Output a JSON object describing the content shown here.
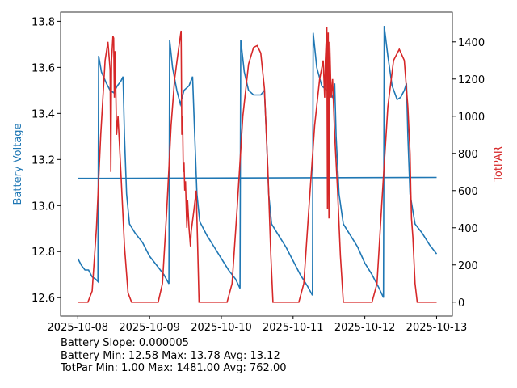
{
  "chart_data": {
    "type": "line",
    "xlabel": "",
    "ylabel": "Battery Voltage",
    "y2label": "TotPAR",
    "x_unit": "days since 2025-10-08",
    "xticks": [
      "2025-10-08",
      "2025-10-09",
      "2025-10-10",
      "2025-10-11",
      "2025-10-12",
      "2025-10-13"
    ],
    "xlim": [
      -0.24,
      5.22
    ],
    "ylim": [
      12.52,
      13.84
    ],
    "y2lim": [
      -75,
      1560
    ],
    "yticks": [
      "12.6",
      "12.8",
      "13.0",
      "13.2",
      "13.4",
      "13.6",
      "13.8"
    ],
    "y2ticks": [
      "0",
      "200",
      "400",
      "600",
      "800",
      "1000",
      "1200",
      "1400"
    ],
    "colors": {
      "battery": "#1f77b4",
      "par": "#d62728"
    },
    "series": [
      {
        "name": "Battery Voltage",
        "axis": "left",
        "points": [
          [
            0,
            12.77
          ],
          [
            0.05,
            12.74
          ],
          [
            0.1,
            12.72
          ],
          [
            0.15,
            12.72
          ],
          [
            0.2,
            12.69
          ],
          [
            0.25,
            12.68
          ],
          [
            0.28,
            12.67
          ],
          [
            0.29,
            13.65
          ],
          [
            0.33,
            13.58
          ],
          [
            0.4,
            13.53
          ],
          [
            0.45,
            13.5
          ],
          [
            0.5,
            13.49
          ],
          [
            0.55,
            13.52
          ],
          [
            0.6,
            13.54
          ],
          [
            0.63,
            13.56
          ],
          [
            0.65,
            13.3
          ],
          [
            0.68,
            13.05
          ],
          [
            0.72,
            12.92
          ],
          [
            0.8,
            12.88
          ],
          [
            0.9,
            12.84
          ],
          [
            1.0,
            12.78
          ],
          [
            1.1,
            12.74
          ],
          [
            1.2,
            12.7
          ],
          [
            1.27,
            12.66
          ],
          [
            1.28,
            13.72
          ],
          [
            1.32,
            13.6
          ],
          [
            1.38,
            13.5
          ],
          [
            1.43,
            13.44
          ],
          [
            1.48,
            13.5
          ],
          [
            1.55,
            13.52
          ],
          [
            1.6,
            13.56
          ],
          [
            1.63,
            13.3
          ],
          [
            1.66,
            13.05
          ],
          [
            1.7,
            12.93
          ],
          [
            1.8,
            12.87
          ],
          [
            1.9,
            12.82
          ],
          [
            2.0,
            12.77
          ],
          [
            2.1,
            12.72
          ],
          [
            2.2,
            12.68
          ],
          [
            2.26,
            12.64
          ],
          [
            2.27,
            13.72
          ],
          [
            2.32,
            13.58
          ],
          [
            2.38,
            13.5
          ],
          [
            2.45,
            13.48
          ],
          [
            2.55,
            13.48
          ],
          [
            2.6,
            13.5
          ],
          [
            2.63,
            13.3
          ],
          [
            2.66,
            13.05
          ],
          [
            2.7,
            12.92
          ],
          [
            2.8,
            12.87
          ],
          [
            2.9,
            12.82
          ],
          [
            3.0,
            12.76
          ],
          [
            3.1,
            12.7
          ],
          [
            3.2,
            12.65
          ],
          [
            3.27,
            12.61
          ],
          [
            3.28,
            13.75
          ],
          [
            3.33,
            13.6
          ],
          [
            3.4,
            13.52
          ],
          [
            3.47,
            13.5
          ],
          [
            3.55,
            13.47
          ],
          [
            3.58,
            13.53
          ],
          [
            3.6,
            13.3
          ],
          [
            3.64,
            13.05
          ],
          [
            3.7,
            12.92
          ],
          [
            3.8,
            12.87
          ],
          [
            3.9,
            12.82
          ],
          [
            4.0,
            12.75
          ],
          [
            4.1,
            12.7
          ],
          [
            4.2,
            12.64
          ],
          [
            4.26,
            12.6
          ],
          [
            4.27,
            13.78
          ],
          [
            4.32,
            13.65
          ],
          [
            4.38,
            13.52
          ],
          [
            4.45,
            13.46
          ],
          [
            4.5,
            13.47
          ],
          [
            4.55,
            13.5
          ],
          [
            4.58,
            13.53
          ],
          [
            4.6,
            13.3
          ],
          [
            4.63,
            13.05
          ],
          [
            4.7,
            12.92
          ],
          [
            4.8,
            12.88
          ],
          [
            4.9,
            12.83
          ],
          [
            5.0,
            12.79
          ]
        ]
      },
      {
        "name": "Battery Trend",
        "axis": "left",
        "points": [
          [
            0,
            13.118
          ],
          [
            5,
            13.122
          ]
        ]
      },
      {
        "name": "TotPAR",
        "axis": "right",
        "points": [
          [
            0,
            0
          ],
          [
            0.14,
            0
          ],
          [
            0.2,
            60
          ],
          [
            0.26,
            400
          ],
          [
            0.32,
            900
          ],
          [
            0.38,
            1300
          ],
          [
            0.42,
            1400
          ],
          [
            0.45,
            1250
          ],
          [
            0.46,
            700
          ],
          [
            0.47,
            1300
          ],
          [
            0.49,
            1430
          ],
          [
            0.5,
            1420
          ],
          [
            0.51,
            1100
          ],
          [
            0.52,
            1350
          ],
          [
            0.54,
            900
          ],
          [
            0.56,
            1000
          ],
          [
            0.6,
            700
          ],
          [
            0.65,
            300
          ],
          [
            0.7,
            50
          ],
          [
            0.75,
            0
          ],
          [
            1.12,
            0
          ],
          [
            1.18,
            100
          ],
          [
            1.24,
            500
          ],
          [
            1.3,
            950
          ],
          [
            1.35,
            1200
          ],
          [
            1.4,
            1350
          ],
          [
            1.44,
            1460
          ],
          [
            1.45,
            900
          ],
          [
            1.46,
            1000
          ],
          [
            1.47,
            700
          ],
          [
            1.48,
            750
          ],
          [
            1.49,
            600
          ],
          [
            1.5,
            650
          ],
          [
            1.52,
            400
          ],
          [
            1.53,
            550
          ],
          [
            1.55,
            400
          ],
          [
            1.57,
            300
          ],
          [
            1.58,
            380
          ],
          [
            1.62,
            500
          ],
          [
            1.65,
            600
          ],
          [
            1.67,
            300
          ],
          [
            1.69,
            0
          ],
          [
            2.08,
            0
          ],
          [
            2.15,
            100
          ],
          [
            2.22,
            500
          ],
          [
            2.3,
            1000
          ],
          [
            2.38,
            1280
          ],
          [
            2.45,
            1370
          ],
          [
            2.5,
            1380
          ],
          [
            2.55,
            1340
          ],
          [
            2.6,
            1150
          ],
          [
            2.65,
            700
          ],
          [
            2.69,
            250
          ],
          [
            2.72,
            0
          ],
          [
            3.08,
            0
          ],
          [
            3.15,
            100
          ],
          [
            3.22,
            500
          ],
          [
            3.3,
            950
          ],
          [
            3.37,
            1200
          ],
          [
            3.42,
            1300
          ],
          [
            3.44,
            1100
          ],
          [
            3.45,
            1300
          ],
          [
            3.47,
            1480
          ],
          [
            3.48,
            500
          ],
          [
            3.49,
            1450
          ],
          [
            3.5,
            450
          ],
          [
            3.51,
            1400
          ],
          [
            3.53,
            1100
          ],
          [
            3.55,
            1200
          ],
          [
            3.58,
            900
          ],
          [
            3.62,
            600
          ],
          [
            3.66,
            250
          ],
          [
            3.7,
            0
          ],
          [
            4.1,
            0
          ],
          [
            4.17,
            100
          ],
          [
            4.24,
            550
          ],
          [
            4.32,
            1050
          ],
          [
            4.4,
            1300
          ],
          [
            4.48,
            1360
          ],
          [
            4.55,
            1300
          ],
          [
            4.6,
            1050
          ],
          [
            4.63,
            800
          ],
          [
            4.64,
            600
          ],
          [
            4.65,
            450
          ],
          [
            4.67,
            350
          ],
          [
            4.7,
            100
          ],
          [
            4.73,
            0
          ],
          [
            5.0,
            0
          ]
        ]
      }
    ],
    "annotations": {
      "slope": "Battery Slope: 0.000005",
      "battery_stats": "Battery Min: 12.58 Max: 13.78 Avg: 13.12",
      "par_stats": "TotPar Min: 1.00 Max: 1481.00 Avg: 762.00"
    }
  }
}
